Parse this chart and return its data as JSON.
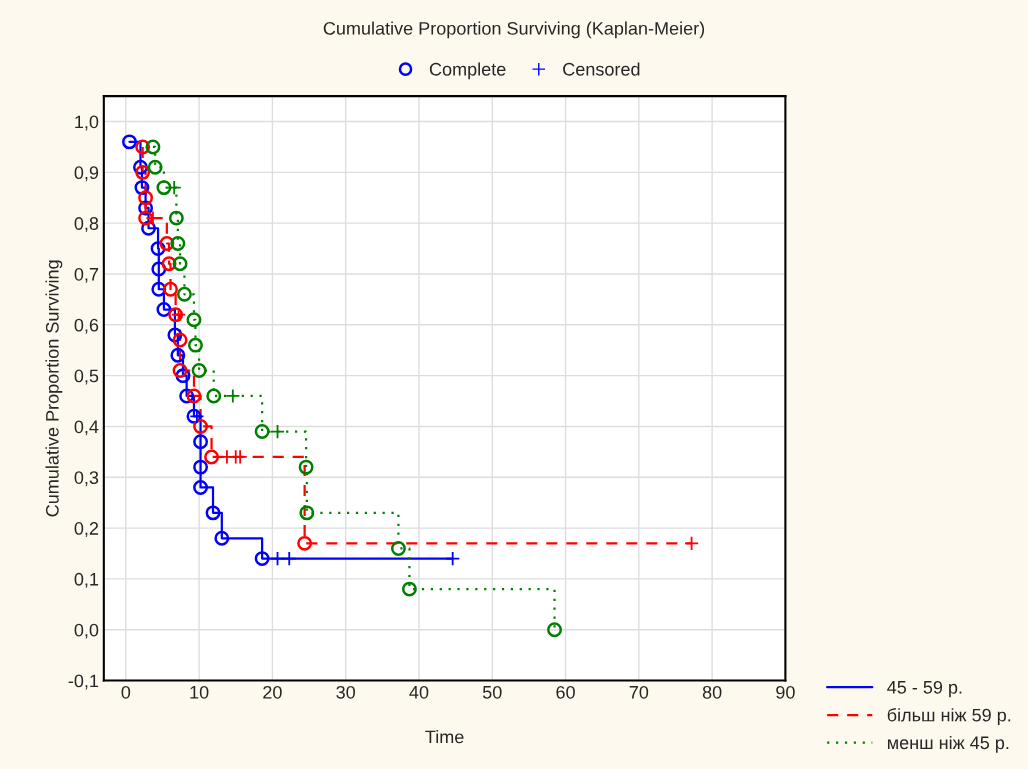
{
  "chart_data": {
    "type": "step",
    "title": "Cumulative Proportion Surviving (Kaplan-Meier)",
    "xlabel": "Time",
    "ylabel": "Cumulative Proportion Surviving",
    "xlim": [
      -3,
      90
    ],
    "ylim": [
      -0.1,
      1.05
    ],
    "xticks": [
      0,
      10,
      20,
      30,
      40,
      50,
      60,
      70,
      80,
      90
    ],
    "yticks": [
      {
        "value": -0.1,
        "label": "-0,1"
      },
      {
        "value": 0.0,
        "label": "0,0"
      },
      {
        "value": 0.1,
        "label": "0,1"
      },
      {
        "value": 0.2,
        "label": "0,2"
      },
      {
        "value": 0.3,
        "label": "0,3"
      },
      {
        "value": 0.4,
        "label": "0,4"
      },
      {
        "value": 0.5,
        "label": "0,5"
      },
      {
        "value": 0.6,
        "label": "0,6"
      },
      {
        "value": 0.7,
        "label": "0,7"
      },
      {
        "value": 0.8,
        "label": "0,8"
      },
      {
        "value": 0.9,
        "label": "0,9"
      },
      {
        "value": 1.0,
        "label": "1,0"
      }
    ],
    "grid": true,
    "legend": "bottom right",
    "series": [
      {
        "name": "45 - 59 р.",
        "color": "#0000ff",
        "line_style": "solid",
        "marker": "none",
        "x": [
          0.5,
          2.0,
          2.2,
          2.7,
          3.1,
          4.4,
          4.5,
          4.5,
          5.2,
          6.7,
          7.1,
          7.8,
          8.3,
          9.3,
          9.7,
          10.2,
          10.2,
          10.2,
          11.9,
          13.1,
          18.6,
          20.7,
          22.3,
          44.6
        ],
        "values": [
          0.96,
          0.91,
          0.87,
          0.83,
          0.79,
          0.75,
          0.71,
          0.67,
          0.63,
          0.58,
          0.54,
          0.5,
          0.46,
          0.42,
          0.42,
          0.37,
          0.32,
          0.28,
          0.23,
          0.18,
          0.14,
          0.14,
          0.14,
          0.14
        ]
      },
      {
        "name": "більш ніж 59 р.",
        "color": "#ff0000",
        "line_style": "dashed",
        "marker": "none",
        "x": [
          2.3,
          2.3,
          2.7,
          2.7,
          3.7,
          5.6,
          5.9,
          6.1,
          6.8,
          7.2,
          7.4,
          7.4,
          9.3,
          10.2,
          11.7,
          13.8,
          15.0,
          15.6,
          24.4,
          77.2
        ],
        "values": [
          0.95,
          0.9,
          0.85,
          0.81,
          0.81,
          0.76,
          0.72,
          0.67,
          0.62,
          0.62,
          0.57,
          0.51,
          0.46,
          0.4,
          0.34,
          0.34,
          0.34,
          0.34,
          0.17,
          0.17
        ]
      },
      {
        "name": "менш ніж 45 р.",
        "color": "#008000",
        "line_style": "dotted",
        "marker": "none",
        "x": [
          3.7,
          4.0,
          5.2,
          6.6,
          6.9,
          7.1,
          7.4,
          8.0,
          9.3,
          9.5,
          10.0,
          12.0,
          14.6,
          18.6,
          20.7,
          24.6,
          24.7,
          37.2,
          38.7,
          58.5
        ],
        "values": [
          0.95,
          0.91,
          0.87,
          0.87,
          0.81,
          0.76,
          0.72,
          0.66,
          0.61,
          0.56,
          0.51,
          0.46,
          0.46,
          0.39,
          0.39,
          0.32,
          0.23,
          0.16,
          0.08,
          0.0
        ]
      },
      {
        "type": "scatter",
        "name": "Complete",
        "marker": "circle",
        "color": "#0000ff",
        "x": [
          0.5,
          2.0,
          2.2,
          2.7,
          3.1,
          4.4,
          4.5,
          4.5,
          5.2,
          6.7,
          7.1,
          7.8,
          8.3,
          9.3,
          10.2,
          10.2,
          10.2,
          11.9,
          13.1,
          18.6,
          2.3,
          2.3,
          2.7,
          2.7,
          5.6,
          5.9,
          6.1,
          6.8,
          7.4,
          7.4,
          9.3,
          10.2,
          11.7,
          24.4,
          3.7,
          4.0,
          5.2,
          6.9,
          7.1,
          7.4,
          8.0,
          9.3,
          9.5,
          10.0,
          12.0,
          18.6,
          24.6,
          24.7,
          37.2,
          38.7,
          58.5
        ],
        "values": [
          0.96,
          0.91,
          0.87,
          0.83,
          0.79,
          0.75,
          0.71,
          0.67,
          0.63,
          0.58,
          0.54,
          0.5,
          0.46,
          0.42,
          0.37,
          0.32,
          0.28,
          0.23,
          0.18,
          0.14,
          0.95,
          0.9,
          0.85,
          0.81,
          0.76,
          0.72,
          0.67,
          0.62,
          0.57,
          0.51,
          0.46,
          0.4,
          0.34,
          0.17,
          0.95,
          0.91,
          0.87,
          0.81,
          0.76,
          0.72,
          0.66,
          0.61,
          0.56,
          0.51,
          0.46,
          0.39,
          0.32,
          0.23,
          0.16,
          0.08,
          0.0
        ],
        "colors": [
          "#0000ff",
          "#0000ff",
          "#0000ff",
          "#0000ff",
          "#0000ff",
          "#0000ff",
          "#0000ff",
          "#0000ff",
          "#0000ff",
          "#0000ff",
          "#0000ff",
          "#0000ff",
          "#0000ff",
          "#0000ff",
          "#0000ff",
          "#0000ff",
          "#0000ff",
          "#0000ff",
          "#0000ff",
          "#0000ff",
          "#ff0000",
          "#ff0000",
          "#ff0000",
          "#ff0000",
          "#ff0000",
          "#ff0000",
          "#ff0000",
          "#ff0000",
          "#ff0000",
          "#ff0000",
          "#ff0000",
          "#ff0000",
          "#ff0000",
          "#ff0000",
          "#008000",
          "#008000",
          "#008000",
          "#008000",
          "#008000",
          "#008000",
          "#008000",
          "#008000",
          "#008000",
          "#008000",
          "#008000",
          "#008000",
          "#008000",
          "#008000",
          "#008000",
          "#008000",
          "#008000"
        ]
      },
      {
        "type": "scatter",
        "name": "Censored",
        "marker": "cross",
        "color": "#0000ff",
        "x": [
          9.7,
          20.7,
          22.3,
          44.6,
          3.7,
          7.2,
          13.8,
          15.0,
          15.6,
          77.2,
          6.6,
          14.6,
          20.7
        ],
        "values": [
          0.42,
          0.14,
          0.14,
          0.14,
          0.81,
          0.62,
          0.34,
          0.34,
          0.34,
          0.17,
          0.87,
          0.46,
          0.39
        ],
        "colors": [
          "#0000ff",
          "#0000ff",
          "#0000ff",
          "#0000ff",
          "#ff0000",
          "#ff0000",
          "#ff0000",
          "#ff0000",
          "#ff0000",
          "#ff0000",
          "#008000",
          "#008000",
          "#008000"
        ]
      }
    ]
  }
}
